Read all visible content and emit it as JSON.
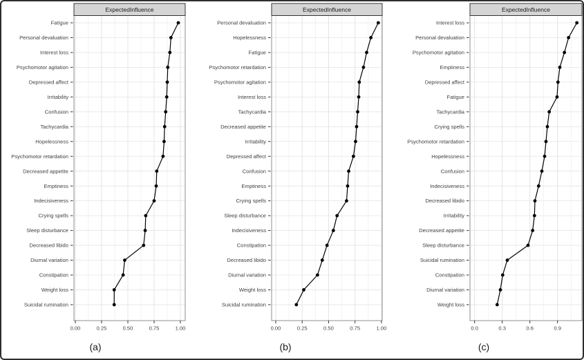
{
  "figure": {
    "panel_labels": [
      "(a)",
      "(b)",
      "(c)"
    ]
  },
  "colors": {
    "figure_border": "#2e2e2e",
    "strip_fill": "#d5d5d5",
    "strip_border": "#333333",
    "plot_border": "#8c8c8c",
    "grid_major": "#e4e4e4",
    "grid_minor": "#f0f0f0",
    "tick": "#333333",
    "label_text": "#404040",
    "strip_text": "#1a1a1a",
    "data": "#000000"
  },
  "chart_data": [
    {
      "type": "scatter",
      "subtype": "dot-line-horizontal",
      "title": "ExpectedInfluence",
      "panel_label": "(a)",
      "xlabel": "",
      "ylabel": "",
      "grid": true,
      "legend": "none",
      "xlim": [
        -0.013,
        1.046
      ],
      "xticks": [
        0,
        0.25,
        0.5,
        0.75,
        1.0
      ],
      "xtick_labels": [
        "0.00",
        "0.25",
        "0.50",
        "0.75",
        "1.00"
      ],
      "xminor": [
        0.125,
        0.375,
        0.625,
        0.875
      ],
      "categories": [
        "Fatigue",
        "Personal devaluation",
        "Interest loss",
        "Psychomotor agitation",
        "Depressed affect",
        "Irritability",
        "Confusion",
        "Tachycardia",
        "Hopelessness",
        "Psychomotor retardation",
        "Decreased appetite",
        "Emptiness",
        "Indecisiveness",
        "Crying spells",
        "Sleep disturbance",
        "Decreased libido",
        "Diurnal variation",
        "Constipation",
        "Weight loss",
        "Suicidal rumination"
      ],
      "values": [
        0.98,
        0.91,
        0.9,
        0.88,
        0.875,
        0.87,
        0.86,
        0.85,
        0.845,
        0.835,
        0.775,
        0.77,
        0.75,
        0.67,
        0.665,
        0.65,
        0.47,
        0.455,
        0.37,
        0.37
      ]
    },
    {
      "type": "scatter",
      "subtype": "dot-line-horizontal",
      "title": "ExpectedInfluence",
      "panel_label": "(b)",
      "xlabel": "",
      "ylabel": "",
      "grid": true,
      "legend": "none",
      "xlim": [
        -0.039,
        1.007
      ],
      "xticks": [
        0,
        0.25,
        0.5,
        0.75,
        1.0
      ],
      "xtick_labels": [
        "0.00",
        "0.25",
        "0.50",
        "0.75",
        "1.00"
      ],
      "xminor": [
        0.125,
        0.375,
        0.625,
        0.875
      ],
      "categories": [
        "Personal devaluation",
        "Hopelessness",
        "Fatigue",
        "Psychomotor retardation",
        "Psychomotor agitation",
        "Interest loss",
        "Tachycardia",
        "Decreased appetite",
        "Irritability",
        "Depressed affect",
        "Confusion",
        "Emptiness",
        "Crying spells",
        "Sleep disturbance",
        "Indecisiveness",
        "Constipation",
        "Decreased libido",
        "Diurnal variation",
        "Weight loss",
        "Suicidal rumination"
      ],
      "values": [
        0.97,
        0.9,
        0.86,
        0.83,
        0.79,
        0.785,
        0.775,
        0.765,
        0.755,
        0.735,
        0.69,
        0.68,
        0.67,
        0.58,
        0.545,
        0.485,
        0.44,
        0.395,
        0.265,
        0.195
      ]
    },
    {
      "type": "scatter",
      "subtype": "dot-line-horizontal",
      "title": "ExpectedInfluence",
      "panel_label": "(c)",
      "xlabel": "",
      "ylabel": "",
      "grid": true,
      "legend": "none",
      "xlim": [
        -0.05,
        1.165
      ],
      "xticks": [
        0,
        0.3,
        0.6,
        0.9
      ],
      "xtick_labels": [
        "0.0",
        "0.3",
        "0.6",
        "0.9"
      ],
      "xminor": [
        0.15,
        0.45,
        0.75,
        1.05
      ],
      "categories": [
        "Interest loss",
        "Personal devaluation",
        "Psychomotor agitation",
        "Emptiness",
        "Depressed affect",
        "Fatigue",
        "Tachycardia",
        "Crying spells",
        "Psychomotor retardation",
        "Hopelessness",
        "Confusion",
        "Indecisiveness",
        "Decreased libido",
        "Irritability",
        "Decreased appetite",
        "Sleep disturbance",
        "Suicidal rumination",
        "Constipation",
        "Diurnal variation",
        "Weight loss"
      ],
      "values": [
        1.11,
        1.02,
        0.975,
        0.925,
        0.905,
        0.895,
        0.81,
        0.79,
        0.775,
        0.76,
        0.73,
        0.695,
        0.655,
        0.65,
        0.63,
        0.58,
        0.355,
        0.305,
        0.28,
        0.245
      ]
    }
  ]
}
